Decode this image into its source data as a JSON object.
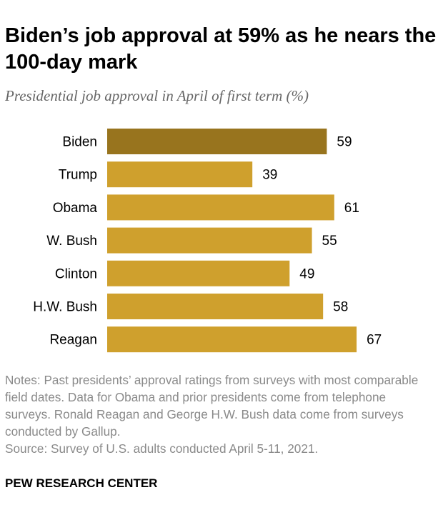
{
  "title": "Biden’s job approval at 59% as he nears the 100-day mark",
  "subtitle": "Presidential job approval in April of first term (%)",
  "notes": "Notes: Past presidents’ approval ratings from surveys with most comparable field dates. Data for Obama and prior presidents come from telephone surveys. Ronald Reagan and George H.W. Bush data come from surveys conducted by Gallup.",
  "source": "Source: Survey of U.S. adults conducted April 5-11, 2021.",
  "brand": "PEW RESEARCH CENTER",
  "colors": {
    "highlight": "#98741e",
    "bar": "#cfa02d",
    "text": "#000000",
    "muted": "#8a8a8a"
  },
  "chart_data": {
    "type": "bar",
    "orientation": "horizontal",
    "title": "Biden’s job approval at 59% as he nears the 100-day mark",
    "subtitle": "Presidential job approval in April of first term (%)",
    "xlabel": "",
    "ylabel": "",
    "categories": [
      "Biden",
      "Trump",
      "Obama",
      "W. Bush",
      "Clinton",
      "H.W. Bush",
      "Reagan"
    ],
    "values": [
      59,
      39,
      61,
      55,
      49,
      58,
      67
    ],
    "highlighted": [
      "Biden"
    ],
    "xlim": [
      0,
      100
    ],
    "grid": false,
    "legend": "none"
  }
}
